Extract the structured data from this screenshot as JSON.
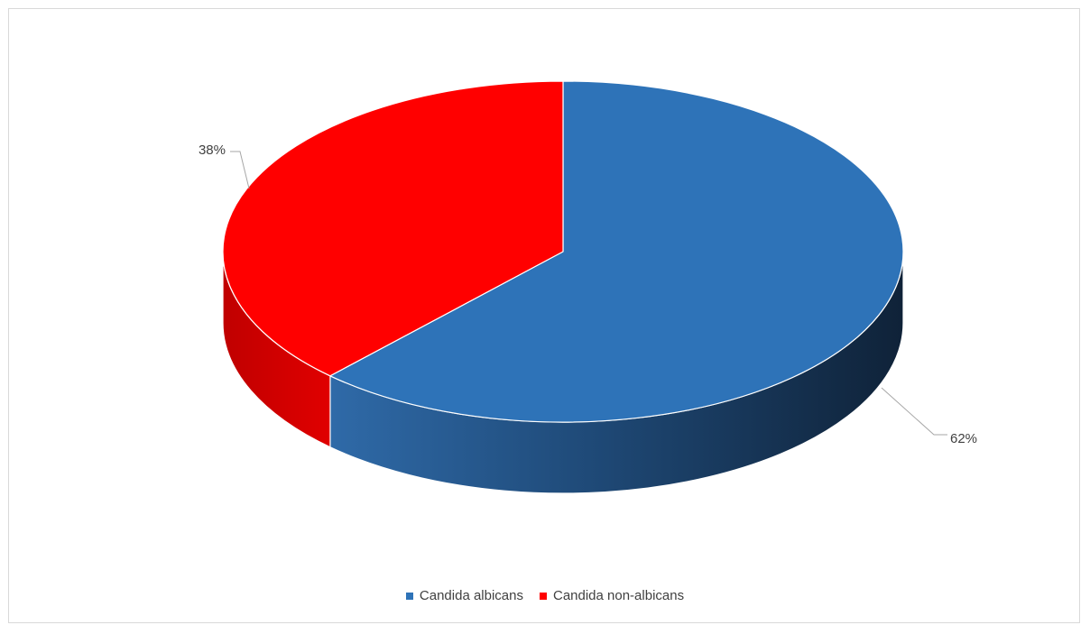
{
  "chart_data": {
    "type": "pie",
    "variant": "3d",
    "categories": [
      "Candida albicans",
      "Candida non-albicans"
    ],
    "values": [
      62,
      38
    ],
    "labels": [
      "62%",
      "38%"
    ],
    "colors": [
      "#2e73b8",
      "#ff0000"
    ],
    "legend": "bottom"
  }
}
